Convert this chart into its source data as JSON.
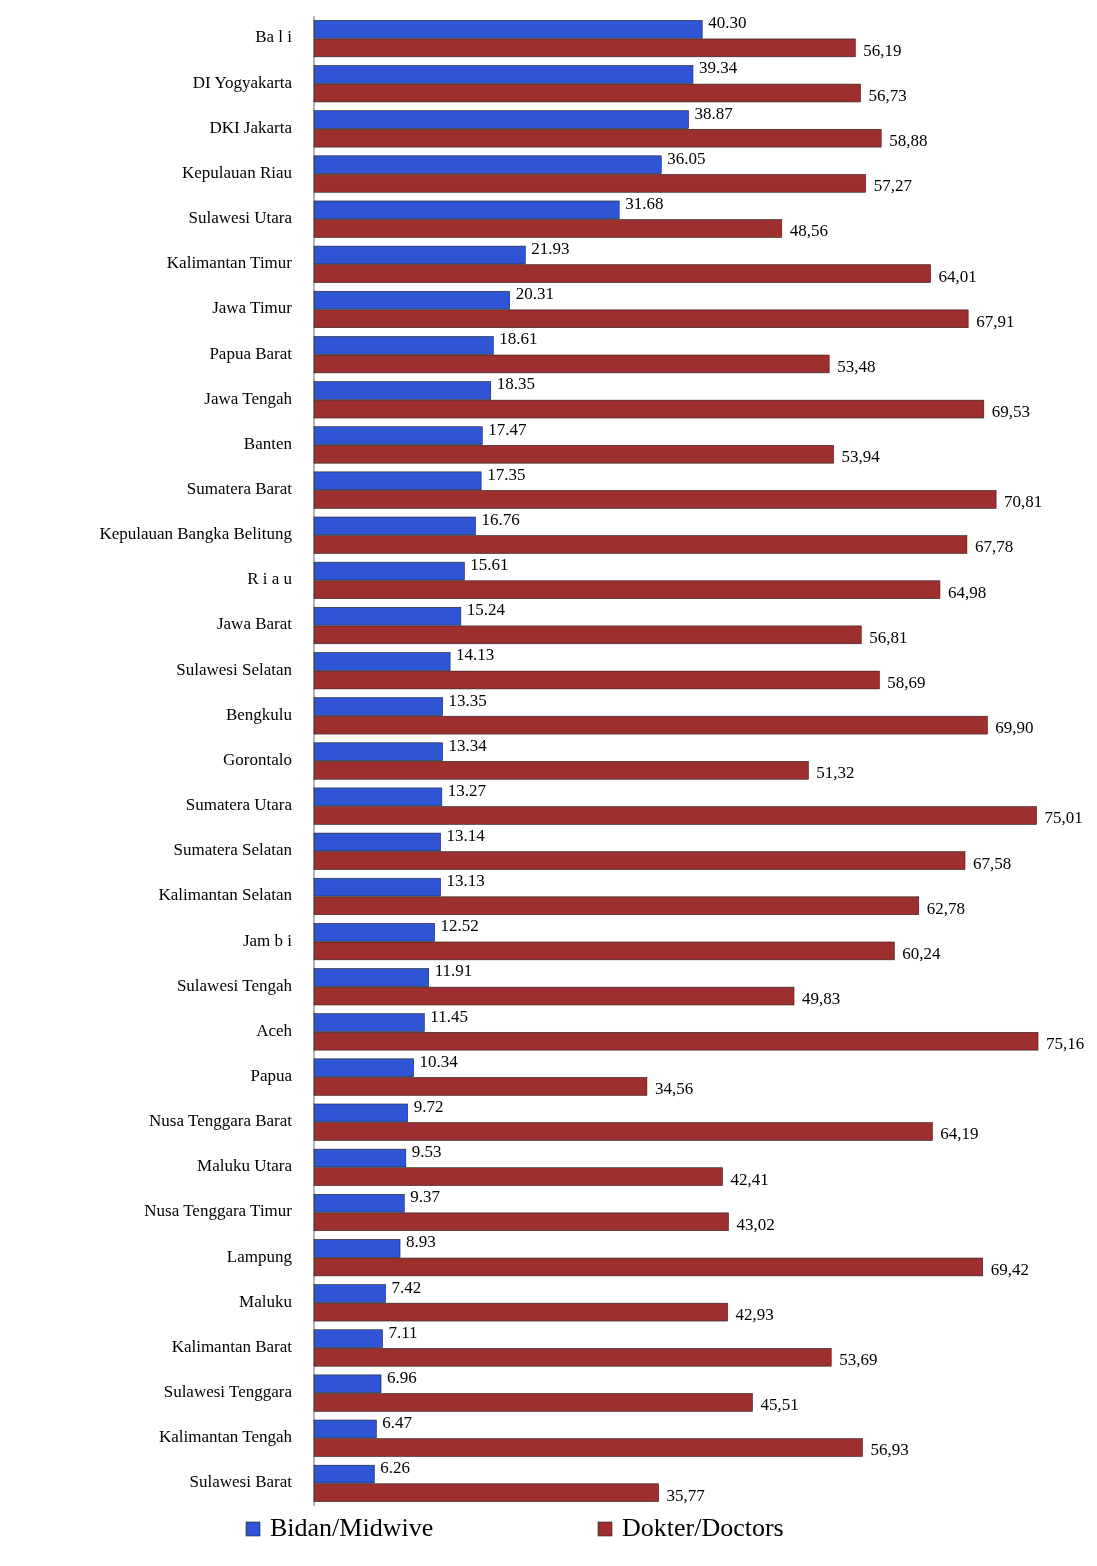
{
  "chart_data": {
    "type": "bar",
    "orientation": "horizontal",
    "legend": "bottom",
    "categories": [
      "Ba l i",
      "DI Yogyakarta",
      "DKI Jakarta",
      "Kepulauan Riau",
      "Sulawesi Utara",
      "Kalimantan Timur",
      "Jawa Timur",
      "Papua Barat",
      "Jawa Tengah",
      "Banten",
      "Sumatera Barat",
      "Kepulauan Bangka Belitung",
      "R i a u",
      "Jawa Barat",
      "Sulawesi Selatan",
      "Bengkulu",
      "Gorontalo",
      "Sumatera Utara",
      "Sumatera Selatan",
      "Kalimantan Selatan",
      "Jam b i",
      "Sulawesi Tengah",
      "Aceh",
      "Papua",
      "Nusa Tenggara Barat",
      "Maluku Utara",
      "Nusa Tenggara Timur",
      "Lampung",
      "Maluku",
      "Kalimantan Barat",
      "Sulawesi Tenggara",
      "Kalimantan Tengah",
      "Sulawesi Barat"
    ],
    "series": [
      {
        "name": "Bidan/Midwive",
        "color": "#2f55d4",
        "values": [
          40.3,
          39.34,
          38.87,
          36.05,
          31.68,
          21.93,
          20.31,
          18.61,
          18.35,
          17.47,
          17.35,
          16.76,
          15.61,
          15.24,
          14.13,
          13.35,
          13.34,
          13.27,
          13.14,
          13.13,
          12.52,
          11.91,
          11.45,
          10.34,
          9.72,
          9.53,
          9.37,
          8.93,
          7.42,
          7.11,
          6.96,
          6.47,
          6.26
        ],
        "value_labels": [
          "40.30",
          "39.34",
          "38.87",
          "36.05",
          "31.68",
          "21.93",
          "20.31",
          "18.61",
          "18.35",
          "17.47",
          "17.35",
          "16.76",
          "15.61",
          "15.24",
          "14.13",
          "13.35",
          "13.34",
          "13.27",
          "13.14",
          "13.13",
          "12.52",
          "11.91",
          "11.45",
          "10.34",
          "9.72",
          "9.53",
          "9.37",
          "8.93",
          "7.42",
          "7.11",
          "6.96",
          "6.47",
          "6.26"
        ]
      },
      {
        "name": "Dokter/Doctors",
        "color": "#9e2f2f",
        "values": [
          56.19,
          56.73,
          58.88,
          57.27,
          48.56,
          64.01,
          67.91,
          53.48,
          69.53,
          53.94,
          70.81,
          67.78,
          64.98,
          56.81,
          58.69,
          69.9,
          51.32,
          75.01,
          67.58,
          62.78,
          60.24,
          49.83,
          75.16,
          34.56,
          64.19,
          42.41,
          43.02,
          69.42,
          42.93,
          53.69,
          45.51,
          56.93,
          35.77
        ],
        "value_labels": [
          "56,19",
          "56,73",
          "58,88",
          "57,27",
          "48,56",
          "64,01",
          "67,91",
          "53,48",
          "69,53",
          "53,94",
          "70,81",
          "67,78",
          "64,98",
          "56,81",
          "58,69",
          "69,90",
          "51,32",
          "75,01",
          "67,58",
          "62,78",
          "60,24",
          "49,83",
          "75,16",
          "34,56",
          "64,19",
          "42,41",
          "43,02",
          "69,42",
          "42,93",
          "53,69",
          "45,51",
          "56,93",
          "35,77"
        ]
      }
    ]
  }
}
